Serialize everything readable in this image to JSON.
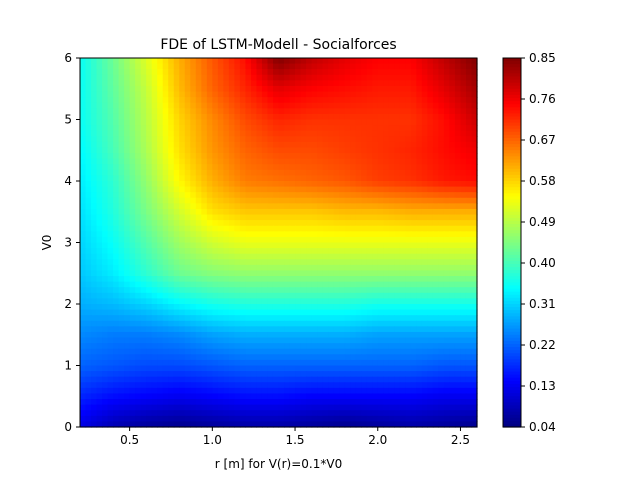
{
  "chart_data": {
    "type": "heatmap",
    "subtype": "filled-contour",
    "title": "FDE of LSTM-Modell - Socialforces",
    "xlabel": "r [m] for V(r)=0.1*V0",
    "ylabel": "V0",
    "xlim": [
      0.2,
      2.6
    ],
    "ylim": [
      0,
      6
    ],
    "x_ticks": [
      "0.5",
      "1.0",
      "1.5",
      "2.0",
      "2.5"
    ],
    "y_ticks": [
      "0",
      "1",
      "2",
      "3",
      "4",
      "5",
      "6"
    ],
    "colorbar": {
      "colormap": "jet",
      "range": [
        0.04,
        0.85
      ],
      "ticks": [
        "0.04",
        "0.13",
        "0.22",
        "0.31",
        "0.40",
        "0.49",
        "0.58",
        "0.67",
        "0.76",
        "0.85"
      ]
    },
    "x": [
      0.2,
      0.4,
      0.6,
      0.8,
      1.0,
      1.2,
      1.4,
      1.6,
      1.8,
      2.0,
      2.2,
      2.4,
      2.6
    ],
    "y": [
      0,
      0.5,
      1,
      1.5,
      2,
      2.5,
      3,
      3.5,
      4,
      4.5,
      5,
      5.5,
      6
    ],
    "z": [
      [
        0.12,
        0.08,
        0.06,
        0.05,
        0.06,
        0.07,
        0.07,
        0.06,
        0.05,
        0.06,
        0.07,
        0.06,
        0.05
      ],
      [
        0.17,
        0.15,
        0.14,
        0.13,
        0.14,
        0.15,
        0.15,
        0.14,
        0.14,
        0.14,
        0.14,
        0.13,
        0.13
      ],
      [
        0.22,
        0.21,
        0.2,
        0.2,
        0.21,
        0.22,
        0.22,
        0.22,
        0.22,
        0.22,
        0.22,
        0.21,
        0.21
      ],
      [
        0.25,
        0.24,
        0.24,
        0.25,
        0.27,
        0.28,
        0.28,
        0.28,
        0.28,
        0.27,
        0.27,
        0.27,
        0.27
      ],
      [
        0.28,
        0.29,
        0.31,
        0.34,
        0.36,
        0.37,
        0.37,
        0.37,
        0.37,
        0.36,
        0.36,
        0.36,
        0.36
      ],
      [
        0.3,
        0.33,
        0.38,
        0.43,
        0.45,
        0.46,
        0.46,
        0.46,
        0.46,
        0.46,
        0.46,
        0.46,
        0.46
      ],
      [
        0.31,
        0.35,
        0.41,
        0.47,
        0.51,
        0.53,
        0.53,
        0.53,
        0.53,
        0.53,
        0.53,
        0.53,
        0.53
      ],
      [
        0.32,
        0.37,
        0.44,
        0.51,
        0.57,
        0.59,
        0.59,
        0.59,
        0.6,
        0.6,
        0.61,
        0.61,
        0.61
      ],
      [
        0.33,
        0.38,
        0.46,
        0.55,
        0.61,
        0.65,
        0.66,
        0.67,
        0.68,
        0.7,
        0.71,
        0.73,
        0.74
      ],
      [
        0.34,
        0.4,
        0.48,
        0.57,
        0.63,
        0.67,
        0.69,
        0.69,
        0.7,
        0.71,
        0.72,
        0.74,
        0.76
      ],
      [
        0.35,
        0.41,
        0.49,
        0.58,
        0.64,
        0.69,
        0.72,
        0.71,
        0.71,
        0.71,
        0.71,
        0.74,
        0.79
      ],
      [
        0.35,
        0.42,
        0.5,
        0.6,
        0.67,
        0.72,
        0.77,
        0.75,
        0.74,
        0.73,
        0.73,
        0.77,
        0.82
      ],
      [
        0.35,
        0.43,
        0.52,
        0.61,
        0.68,
        0.74,
        0.85,
        0.8,
        0.77,
        0.75,
        0.75,
        0.8,
        0.85
      ]
    ]
  }
}
